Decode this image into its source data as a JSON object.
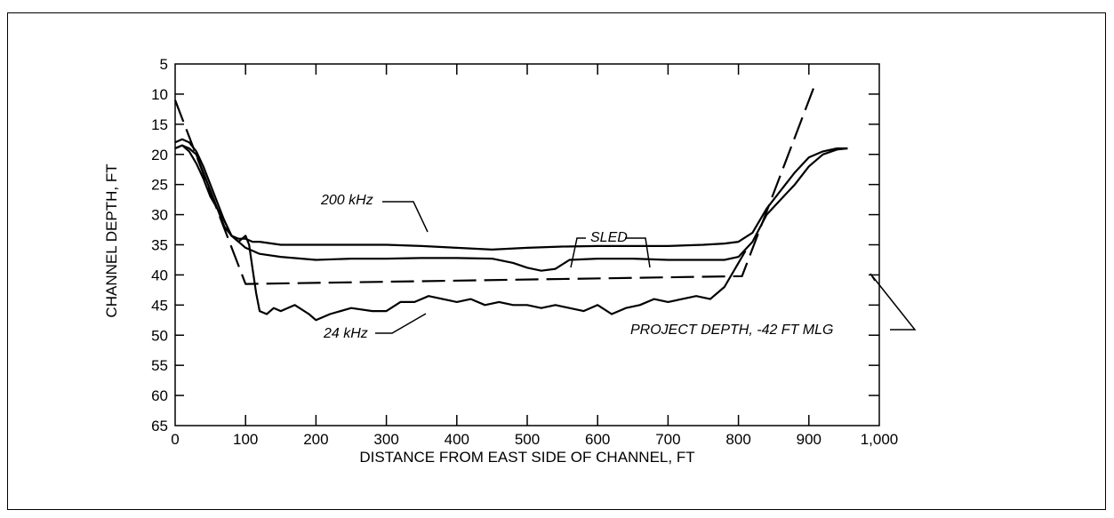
{
  "chart_data": {
    "type": "line",
    "title": "",
    "xlabel": "DISTANCE FROM EAST SIDE OF CHANNEL,  FT",
    "ylabel": "CHANNEL DEPTH, FT",
    "xlim": [
      0,
      1000
    ],
    "ylim": [
      5,
      65
    ],
    "y_inverted": true,
    "grid": false,
    "x_ticks": [
      "0",
      "100",
      "200",
      "300",
      "400",
      "500",
      "600",
      "700",
      "800",
      "900",
      "1,000"
    ],
    "x_tick_values": [
      0,
      100,
      200,
      300,
      400,
      500,
      600,
      700,
      800,
      900,
      1000
    ],
    "y_ticks": [
      "5",
      "10",
      "15",
      "20",
      "25",
      "30",
      "35",
      "40",
      "45",
      "50",
      "55",
      "60",
      "65"
    ],
    "y_tick_values": [
      5,
      10,
      15,
      20,
      25,
      30,
      35,
      40,
      45,
      50,
      55,
      60,
      65
    ],
    "series": [
      {
        "name": "200 kHz",
        "style": "solid",
        "x": [
          0,
          10,
          20,
          30,
          40,
          50,
          60,
          70,
          80,
          90,
          100,
          110,
          120,
          150,
          200,
          250,
          300,
          350,
          400,
          450,
          500,
          550,
          600,
          650,
          700,
          750,
          780,
          800,
          820,
          840,
          860,
          880,
          900,
          920,
          940,
          955
        ],
        "y": [
          19,
          18.5,
          19,
          20,
          23,
          26,
          29,
          32,
          33.5,
          34,
          34,
          34.5,
          34.5,
          35,
          35,
          35,
          35,
          35.2,
          35.5,
          35.8,
          35.5,
          35.3,
          35.2,
          35.2,
          35.2,
          35,
          34.8,
          34.5,
          33,
          29,
          26,
          23,
          20.5,
          19.5,
          19,
          19
        ]
      },
      {
        "name": "SLED",
        "style": "solid",
        "x": [
          0,
          10,
          20,
          30,
          40,
          50,
          60,
          70,
          80,
          90,
          100,
          110,
          120,
          150,
          200,
          250,
          300,
          350,
          400,
          450,
          480,
          500,
          520,
          540,
          560,
          600,
          650,
          700,
          750,
          780,
          800,
          820,
          840,
          860,
          880,
          900,
          920,
          940,
          955
        ],
        "y": [
          18,
          17.5,
          18,
          19.5,
          22,
          25,
          28,
          31,
          33.5,
          34.5,
          35.5,
          36,
          36.5,
          37,
          37.5,
          37.3,
          37.3,
          37.2,
          37.2,
          37.3,
          38,
          38.8,
          39.3,
          39,
          37.5,
          37.3,
          37.3,
          37.5,
          37.5,
          37.5,
          37,
          34.5,
          30,
          27.5,
          25,
          22,
          20,
          19.2,
          19
        ]
      },
      {
        "name": "24 kHz",
        "style": "solid",
        "x": [
          0,
          10,
          20,
          30,
          40,
          50,
          60,
          70,
          80,
          90,
          100,
          105,
          110,
          115,
          120,
          130,
          140,
          150,
          170,
          190,
          200,
          220,
          250,
          280,
          300,
          320,
          340,
          360,
          380,
          400,
          420,
          440,
          460,
          480,
          500,
          520,
          540,
          560,
          580,
          600,
          620,
          640,
          660,
          680,
          700,
          720,
          740,
          760,
          780,
          800,
          810
        ],
        "y": [
          19,
          18.5,
          19.5,
          21.5,
          24,
          27,
          29,
          31,
          33.5,
          34.5,
          33.5,
          35,
          39,
          43,
          46,
          46.5,
          45.5,
          46,
          45,
          46.5,
          47.5,
          46.5,
          45.5,
          46,
          46,
          44.5,
          44.5,
          43.5,
          44,
          44.5,
          44,
          45,
          44.5,
          45,
          45,
          45.5,
          45,
          45.5,
          46,
          45,
          46.5,
          45.5,
          45,
          44,
          44.5,
          44,
          43.5,
          44,
          42,
          38,
          36
        ]
      },
      {
        "name": "PROJECT DEPTH, -42 FT MLG",
        "style": "dashed",
        "x": [
          0,
          100,
          805,
          910
        ],
        "y": [
          11,
          41.5,
          40.2,
          8
        ]
      }
    ],
    "annotations": [
      {
        "text": "200 kHz",
        "x": 300,
        "y": 31.5
      },
      {
        "text": "SLED",
        "x": 525,
        "y": 33.5
      },
      {
        "text": "24 kHz",
        "x": 230,
        "y": 49
      },
      {
        "text": "PROJECT DEPTH, -42 FT MLG",
        "x": 720,
        "y": 48
      }
    ]
  }
}
